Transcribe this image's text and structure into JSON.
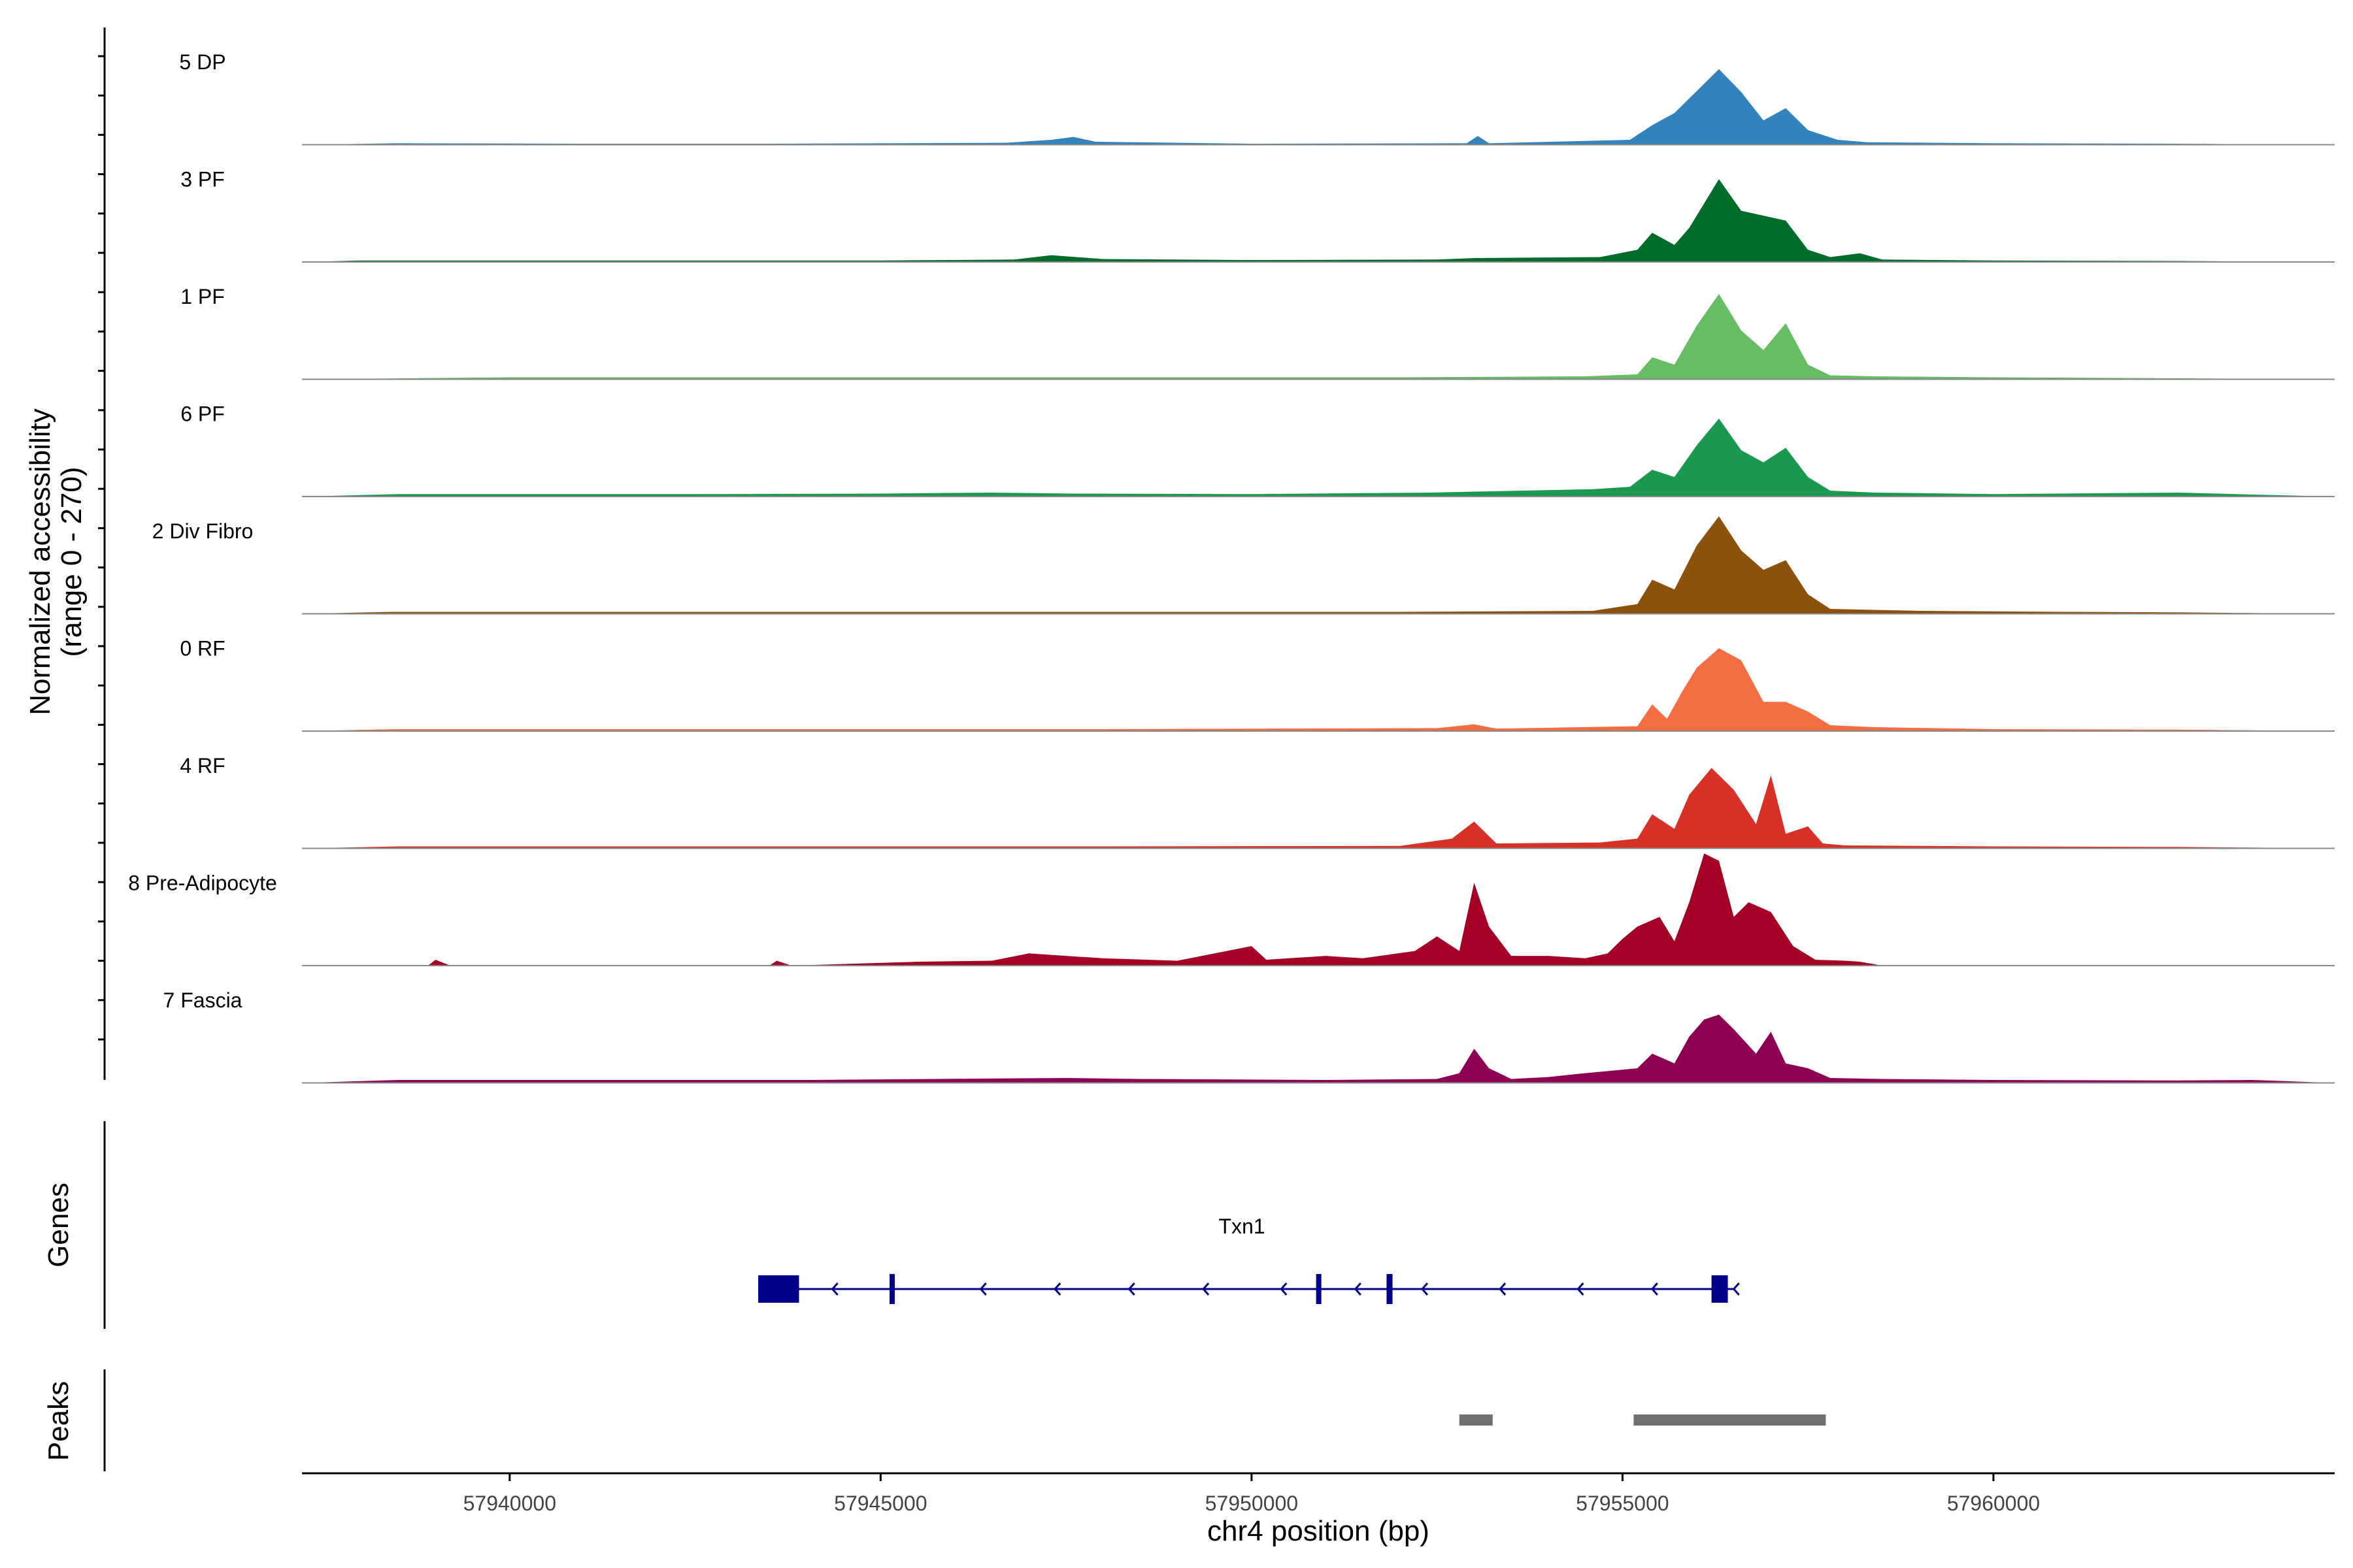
{
  "chart_data": {
    "type": "area",
    "title": "",
    "ylabel_line1": "Normalized accessibility",
    "ylabel_line2": "(range 0 - 270)",
    "y_range": [
      0,
      270
    ],
    "xlabel": "chr4 position (bp)",
    "xlim": [
      57937200,
      57964600
    ],
    "x_ticks": [
      57940000,
      57945000,
      57950000,
      57955000,
      57960000
    ],
    "x_tick_labels": [
      "57940000",
      "57945000",
      "57950000",
      "57955000",
      "57960000"
    ],
    "series": [
      {
        "name": "5 DP",
        "color": "#3182bd",
        "x": [
          57937200,
          57938500,
          57941000,
          57943500,
          57946700,
          57947300,
          57947600,
          57947900,
          57950000,
          57952900,
          57953050,
          57953200,
          57955100,
          57955400,
          57955700,
          57956000,
          57956300,
          57956600,
          57956900,
          57957200,
          57957500,
          57957900,
          57958300,
          57960000,
          57962500,
          57964600
        ],
        "values": [
          0,
          3,
          2,
          2,
          4,
          10,
          16,
          6,
          2,
          3,
          18,
          3,
          10,
          40,
          65,
          110,
          155,
          108,
          50,
          75,
          30,
          10,
          5,
          3,
          2,
          0
        ]
      },
      {
        "name": "3 PF",
        "color": "#006d2c",
        "x": [
          57937200,
          57938000,
          57942000,
          57945000,
          57946800,
          57947300,
          57948000,
          57950000,
          57952500,
          57953000,
          57954700,
          57955200,
          57955400,
          57955700,
          57955900,
          57956300,
          57956600,
          57956900,
          57957200,
          57957500,
          57957800,
          57958200,
          57958500,
          57960000,
          57962500,
          57964600
        ],
        "values": [
          0,
          3,
          3,
          3,
          5,
          14,
          6,
          4,
          5,
          8,
          10,
          25,
          60,
          35,
          70,
          170,
          105,
          95,
          85,
          25,
          10,
          18,
          5,
          3,
          2,
          0
        ]
      },
      {
        "name": "1 PF",
        "color": "#66bd63",
        "x": [
          57937200,
          57940000,
          57944000,
          57948000,
          57952000,
          57954500,
          57955200,
          57955400,
          57955700,
          57956000,
          57956300,
          57956600,
          57956900,
          57957200,
          57957500,
          57957800,
          57958400,
          57960000,
          57962500,
          57964600
        ],
        "values": [
          0,
          4,
          4,
          4,
          4,
          6,
          10,
          45,
          30,
          110,
          175,
          100,
          60,
          115,
          30,
          8,
          6,
          4,
          2,
          0
        ]
      },
      {
        "name": "6 PF",
        "color": "#1a9850",
        "x": [
          57937200,
          57938500,
          57940500,
          57942500,
          57945000,
          57946500,
          57947600,
          57950000,
          57952400,
          57953000,
          57954600,
          57955100,
          57955400,
          57955700,
          57956000,
          57956300,
          57956600,
          57956900,
          57957200,
          57957500,
          57957800,
          57958400,
          57960000,
          57962500,
          57963500,
          57964600
        ],
        "values": [
          0,
          5,
          5,
          5,
          6,
          8,
          6,
          5,
          8,
          10,
          15,
          20,
          55,
          40,
          105,
          160,
          95,
          70,
          100,
          40,
          12,
          8,
          5,
          8,
          4,
          0
        ]
      },
      {
        "name": "2 Div Fibro",
        "color": "#8c510a",
        "x": [
          57937200,
          57938400,
          57940000,
          57943000,
          57946000,
          57949000,
          57952000,
          57954600,
          57955200,
          57955400,
          57955700,
          57956000,
          57956300,
          57956600,
          57956900,
          57957200,
          57957500,
          57957800,
          57958400,
          57959000,
          57961000,
          57962500,
          57964600
        ],
        "values": [
          0,
          4,
          4,
          4,
          4,
          4,
          4,
          6,
          20,
          70,
          50,
          140,
          200,
          130,
          90,
          110,
          40,
          10,
          8,
          6,
          4,
          3,
          0
        ]
      },
      {
        "name": "0 RF",
        "color": "#f46d43",
        "x": [
          57937200,
          57938500,
          57941000,
          57944000,
          57948000,
          57952500,
          57953000,
          57953300,
          57955200,
          57955400,
          57955600,
          57955800,
          57956000,
          57956300,
          57956600,
          57956900,
          57957200,
          57957500,
          57957800,
          57958400,
          57960000,
          57962500,
          57964600
        ],
        "values": [
          0,
          4,
          4,
          4,
          4,
          6,
          14,
          5,
          10,
          55,
          25,
          80,
          130,
          170,
          145,
          60,
          60,
          40,
          12,
          8,
          4,
          3,
          0
        ]
      },
      {
        "name": "4 RF",
        "color": "#d73027",
        "x": [
          57937200,
          57938500,
          57941000,
          57944000,
          57948000,
          57952000,
          57952700,
          57953000,
          57953300,
          57954700,
          57955200,
          57955400,
          57955700,
          57955900,
          57956200,
          57956500,
          57956800,
          57957000,
          57957200,
          57957500,
          57957700,
          57958000,
          57960000,
          57962500,
          57964600
        ],
        "values": [
          0,
          4,
          4,
          4,
          4,
          5,
          20,
          55,
          10,
          12,
          20,
          70,
          40,
          110,
          165,
          120,
          50,
          150,
          30,
          45,
          10,
          6,
          4,
          3,
          0
        ]
      },
      {
        "name": "8 Pre-Adipocyte",
        "color": "#a50026",
        "x": [
          57937200,
          57938900,
          57939000,
          57939200,
          57943500,
          57943600,
          57943800,
          57945500,
          57946500,
          57947000,
          57947500,
          57948000,
          57949000,
          57950000,
          57950200,
          57950500,
          57951000,
          57951500,
          57952200,
          57952500,
          57952800,
          57953000,
          57953200,
          57953500,
          57954000,
          57954500,
          57954800,
          57955000,
          57955200,
          57955500,
          57955700,
          57955900,
          57956100,
          57956300,
          57956500,
          57956700,
          57957000,
          57957300,
          57957600,
          57958000,
          57958200,
          57958500,
          57964600
        ],
        "values": [
          0,
          0,
          12,
          0,
          0,
          10,
          0,
          8,
          10,
          25,
          20,
          15,
          10,
          40,
          12,
          15,
          20,
          15,
          30,
          60,
          30,
          170,
          80,
          20,
          20,
          15,
          25,
          55,
          80,
          100,
          50,
          130,
          230,
          215,
          100,
          130,
          110,
          40,
          12,
          10,
          8,
          0,
          0
        ]
      },
      {
        "name": "7 Fascia",
        "color": "#8e0152",
        "x": [
          57937200,
          57938500,
          57941000,
          57944000,
          57947500,
          57948500,
          57951000,
          57952500,
          57952800,
          57953000,
          57953200,
          57953500,
          57954000,
          57954500,
          57955200,
          57955400,
          57955700,
          57955900,
          57956100,
          57956300,
          57956500,
          57956800,
          57957000,
          57957200,
          57957500,
          57957800,
          57958500,
          57960000,
          57962500,
          57963500,
          57964600
        ],
        "values": [
          0,
          6,
          6,
          6,
          10,
          8,
          6,
          8,
          20,
          70,
          30,
          8,
          12,
          20,
          30,
          60,
          40,
          95,
          130,
          140,
          110,
          60,
          105,
          40,
          30,
          10,
          8,
          6,
          5,
          6,
          0
        ]
      }
    ],
    "genes_track_label": "Genes",
    "gene": {
      "name": "Txn1",
      "strand": "-",
      "start": 57943350,
      "end": 57956500,
      "exons": [
        [
          57943350,
          57943900
        ],
        [
          57945120,
          57945170
        ],
        [
          57950870,
          57950930
        ],
        [
          57951820,
          57951900
        ],
        [
          57956200,
          57956420
        ]
      ],
      "direction_arrows_x": [
        57944350,
        57946350,
        57947350,
        57948350,
        57949350,
        57950400,
        57951400,
        57952300,
        57953350,
        57954400,
        57955400,
        57956500
      ]
    },
    "peaks_track_label": "Peaks",
    "peaks": [
      [
        57952800,
        57953250
      ],
      [
        57955150,
        57957740
      ]
    ]
  }
}
